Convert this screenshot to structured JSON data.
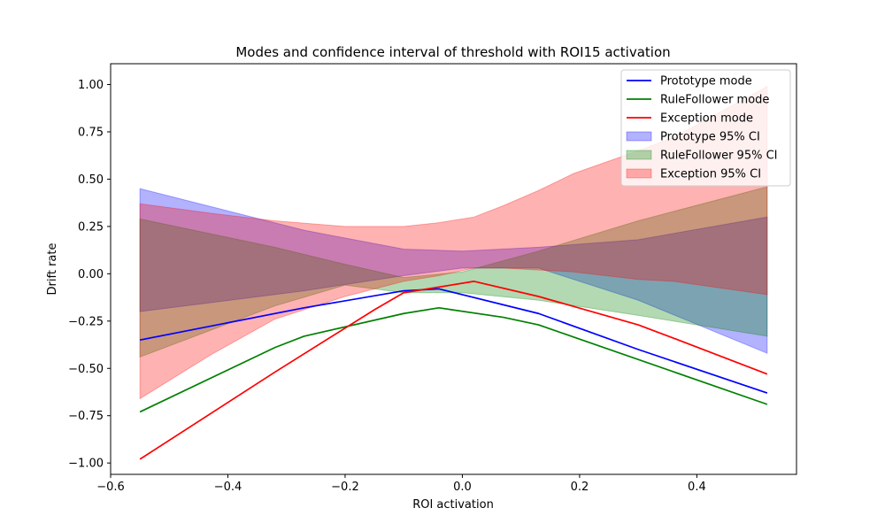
{
  "chart_data": {
    "type": "line",
    "title": "Modes and confidence interval of threshold with ROI15 activation",
    "xlabel": "ROI activation",
    "ylabel": "Drift rate",
    "xlim": [
      -0.6,
      0.57
    ],
    "ylim": [
      -1.06,
      1.11
    ],
    "xticks": [
      -0.6,
      -0.4,
      -0.2,
      0.0,
      0.2,
      0.4
    ],
    "xtick_labels": [
      "−0.6",
      "−0.4",
      "−0.2",
      "0.0",
      "0.2",
      "0.4"
    ],
    "yticks": [
      -1.0,
      -0.75,
      -0.5,
      -0.25,
      0.0,
      0.25,
      0.5,
      0.75,
      1.0
    ],
    "ytick_labels": [
      "−1.00",
      "−0.75",
      "−0.50",
      "−0.25",
      "0.00",
      "0.25",
      "0.50",
      "0.75",
      "1.00"
    ],
    "grid": false,
    "legend_position": "top-right",
    "lines": [
      {
        "name": "Prototype mode",
        "color": "#0000ff",
        "x": [
          -0.55,
          -0.27,
          -0.1,
          -0.04,
          0.13,
          0.3,
          0.52
        ],
        "y": [
          -0.35,
          -0.18,
          -0.09,
          -0.08,
          -0.21,
          -0.4,
          -0.63
        ]
      },
      {
        "name": "RuleFollower mode",
        "color": "#008000",
        "x": [
          -0.55,
          -0.32,
          -0.27,
          -0.1,
          -0.04,
          0.07,
          0.13,
          0.52
        ],
        "y": [
          -0.73,
          -0.39,
          -0.33,
          -0.21,
          -0.18,
          -0.23,
          -0.27,
          -0.69
        ]
      },
      {
        "name": "Exception mode",
        "color": "#ff0000",
        "x": [
          -0.55,
          -0.32,
          -0.15,
          -0.1,
          0.02,
          0.13,
          0.3,
          0.36,
          0.52
        ],
        "y": [
          -0.98,
          -0.52,
          -0.19,
          -0.1,
          -0.04,
          -0.12,
          -0.27,
          -0.34,
          -0.53
        ]
      }
    ],
    "bands": [
      {
        "name": "Prototype 95% CI",
        "color": "#0000ff",
        "x": [
          -0.55,
          -0.27,
          -0.1,
          0.0,
          0.13,
          0.3,
          0.52
        ],
        "lower": [
          -0.2,
          -0.09,
          -0.01,
          0.03,
          0.03,
          -0.14,
          -0.42
        ],
        "upper": [
          0.45,
          0.23,
          0.13,
          0.12,
          0.14,
          0.18,
          0.3
        ]
      },
      {
        "name": "RuleFollower 95% CI",
        "color": "#008000",
        "x": [
          -0.55,
          -0.32,
          -0.2,
          -0.1,
          0.0,
          0.13,
          0.3,
          0.52
        ],
        "lower": [
          -0.44,
          -0.17,
          -0.06,
          -0.1,
          -0.1,
          -0.14,
          -0.22,
          -0.33
        ],
        "upper": [
          0.29,
          0.14,
          0.05,
          -0.02,
          0.01,
          0.12,
          0.28,
          0.46
        ]
      },
      {
        "name": "Exception 95% CI",
        "color": "#ff0000",
        "x": [
          -0.55,
          -0.43,
          -0.32,
          -0.2,
          -0.1,
          -0.04,
          0.02,
          0.07,
          0.13,
          0.19,
          0.3,
          0.36,
          0.52
        ],
        "lower": [
          -0.66,
          -0.43,
          -0.24,
          -0.12,
          -0.04,
          -0.01,
          0.03,
          0.03,
          0.02,
          0.01,
          -0.03,
          -0.04,
          -0.11
        ],
        "upper": [
          0.37,
          0.32,
          0.28,
          0.25,
          0.25,
          0.27,
          0.3,
          0.36,
          0.44,
          0.53,
          0.65,
          0.72,
          0.99
        ]
      }
    ],
    "legend": [
      {
        "label": "Prototype mode",
        "kind": "line",
        "color": "#0000ff"
      },
      {
        "label": "RuleFollower mode",
        "kind": "line",
        "color": "#008000"
      },
      {
        "label": "Exception mode",
        "kind": "line",
        "color": "#ff0000"
      },
      {
        "label": "Prototype 95% CI",
        "kind": "patch",
        "color": "#0000ff"
      },
      {
        "label": "RuleFollower 95% CI",
        "kind": "patch",
        "color": "#008000"
      },
      {
        "label": "Exception 95% CI",
        "kind": "patch",
        "color": "#ff0000"
      }
    ]
  }
}
